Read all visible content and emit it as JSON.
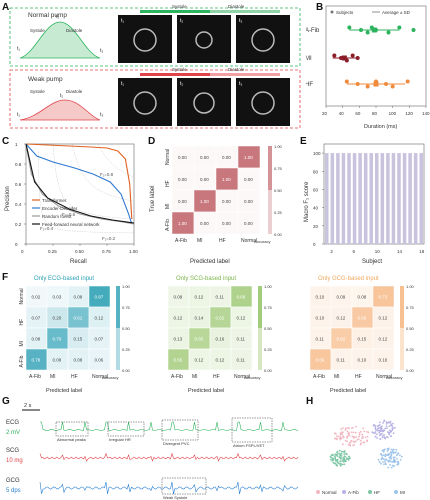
{
  "panels": {
    "A": {
      "letter": "A",
      "normal": {
        "title": "Normal pump",
        "systole": "Systole",
        "diastole": "Diastole",
        "t1": "t₁",
        "t2": "t₂",
        "t3": "t₃",
        "frames": [
          "t₁",
          "t₂",
          "t₃"
        ],
        "arrow_systole": "Systole",
        "arrow_diastole": "Diastole",
        "color": "#2db35d"
      },
      "weak": {
        "title": "Weak pump",
        "systole": "Systole",
        "diastole": "Diastole",
        "t1": "t₁",
        "t2": "t₂",
        "t3": "t₃",
        "frames": [
          "t₁",
          "t₂",
          "t₃"
        ],
        "arrow_systole": "Systole",
        "arrow_diastole": "Diastole",
        "color": "#e0444a"
      }
    },
    "B": {
      "letter": "B",
      "legend_subjects": "Subjects",
      "legend_avg": "Average ± SD",
      "xlabel": "Duration (ms)",
      "xticks": [
        "20",
        "40",
        "60",
        "80",
        "100",
        "120",
        "140"
      ],
      "categories": [
        "A-Fib",
        "MI",
        "HF"
      ]
    },
    "C": {
      "letter": "C",
      "xlabel": "Recall",
      "ylabel": "Precision",
      "xticks": [
        "0",
        "0.25",
        "0.50",
        "0.75",
        "1.00"
      ],
      "yticks": [
        "0",
        "0.2",
        "0.4",
        "0.6",
        "0.8",
        "1"
      ],
      "legend": [
        "Transformer",
        "Encoder-Decoder",
        "Random forest",
        "Feed-forward neural network"
      ],
      "annotations": [
        "F₁=0.8",
        "F₁=0.6",
        "F₁=0.4",
        "F₁=0.2"
      ]
    },
    "D": {
      "letter": "D",
      "xlabel": "Predicted label",
      "ylabel": "True label",
      "labels": [
        "A-Fib",
        "MI",
        "HF",
        "Normal"
      ],
      "colorbar_ticks": [
        "1.00",
        "0.75",
        "0.50",
        "0.25",
        "0.00"
      ],
      "colorbar_label": "Accuracy",
      "color": "#c8787d"
    },
    "E": {
      "letter": "E",
      "xlabel": "Subject",
      "ylabel": "Macro F₁ score",
      "xticks": [
        "2",
        "6",
        "10",
        "14",
        "18"
      ],
      "yticks": [
        "0",
        "20",
        "40",
        "60",
        "80",
        "100"
      ]
    },
    "F": {
      "letter": "F",
      "titles": [
        "Only ECG-based input",
        "Only SCG-based input",
        "Only GCG-based input"
      ],
      "title_colors": [
        "#2a9fb4",
        "#7bb34a",
        "#f0a860"
      ],
      "cell_colors": [
        "#2a9fb4",
        "#8cbf5a",
        "#f5b077"
      ],
      "xlabel": "Predicted label",
      "labels": [
        "A-Fib",
        "MI",
        "HF",
        "Normal"
      ],
      "colorbar_ticks": [
        "1.00",
        "0.75",
        "0.50",
        "0.25",
        "0.00"
      ],
      "colorbar_label": "Accuracy"
    },
    "G": {
      "letter": "G",
      "scale_time": "2 s",
      "signals": [
        {
          "label": "ECG",
          "scale": "2 mV",
          "color": "#2db35d"
        },
        {
          "label": "SCG",
          "scale": "10 mg",
          "color": "#e0444a"
        },
        {
          "label": "GCG",
          "scale": "5 dps",
          "color": "#2a7fd0"
        }
      ],
      "boxes": [
        "Abnormal peaks",
        "Irregular HR",
        "Divergent PVC",
        "Weak Systole",
        "Atrium FSPL/VET"
      ]
    },
    "H": {
      "letter": "H",
      "legend": [
        {
          "label": "Normal",
          "color": "#f2b7c2"
        },
        {
          "label": "A-Fib",
          "color": "#b7b2e4"
        },
        {
          "label": "HF",
          "color": "#7fc7a6"
        },
        {
          "label": "MI",
          "color": "#9ec4ea"
        }
      ]
    }
  },
  "chart_data": [
    {
      "type": "scatter",
      "panel": "B",
      "xlabel": "Duration (ms)",
      "xlim": [
        20,
        140
      ],
      "categories": [
        "A-Fib",
        "MI",
        "HF"
      ],
      "series": [
        {
          "name": "A-Fib",
          "color": "#2db35d",
          "x": [
            48,
            62,
            70,
            75,
            80,
            95,
            108,
            125
          ],
          "mean": 78,
          "sd": 30
        },
        {
          "name": "MI",
          "color": "#8b1c2a",
          "x": [
            30,
            38,
            45,
            52,
            58
          ],
          "mean": 42,
          "sd": 14
        },
        {
          "name": "HF",
          "color": "#f08a3c",
          "x": [
            45,
            58,
            70,
            80,
            92,
            100,
            118
          ],
          "mean": 80,
          "sd": 35
        }
      ]
    },
    {
      "type": "line",
      "panel": "C",
      "xlabel": "Recall",
      "ylabel": "Precision",
      "xlim": [
        0,
        1
      ],
      "ylim": [
        0,
        1
      ],
      "series": [
        {
          "name": "Transformer",
          "color": "#e0601f",
          "points": [
            [
              0,
              1
            ],
            [
              0.2,
              0.99
            ],
            [
              0.4,
              0.98
            ],
            [
              0.6,
              0.97
            ],
            [
              0.75,
              0.96
            ],
            [
              0.85,
              0.93
            ],
            [
              0.92,
              0.85
            ],
            [
              0.96,
              0.6
            ],
            [
              0.98,
              0.25
            ]
          ]
        },
        {
          "name": "Encoder-Decoder",
          "color": "#2f7ad1",
          "points": [
            [
              0,
              1
            ],
            [
              0.1,
              0.88
            ],
            [
              0.25,
              0.82
            ],
            [
              0.45,
              0.76
            ],
            [
              0.62,
              0.7
            ],
            [
              0.78,
              0.62
            ],
            [
              0.88,
              0.5
            ],
            [
              0.95,
              0.3
            ],
            [
              0.98,
              0.2
            ]
          ]
        },
        {
          "name": "Random forest",
          "color": "#9a9a9a",
          "points": [
            [
              0,
              1
            ],
            [
              0.05,
              0.7
            ],
            [
              0.15,
              0.5
            ],
            [
              0.3,
              0.38
            ],
            [
              0.5,
              0.3
            ],
            [
              0.7,
              0.25
            ],
            [
              0.9,
              0.22
            ],
            [
              1,
              0.2
            ]
          ]
        },
        {
          "name": "Feed-forward neural network",
          "color": "#111111",
          "points": [
            [
              0,
              1
            ],
            [
              0.08,
              0.62
            ],
            [
              0.2,
              0.46
            ],
            [
              0.4,
              0.35
            ],
            [
              0.6,
              0.28
            ],
            [
              0.8,
              0.24
            ],
            [
              1,
              0.21
            ]
          ]
        }
      ]
    },
    {
      "type": "heatmap",
      "panel": "D",
      "xlabel": "Predicted label",
      "ylabel": "True label",
      "x": [
        "A-Fib",
        "MI",
        "HF",
        "Normal"
      ],
      "y": [
        "Normal",
        "HF",
        "MI",
        "A-Fib"
      ],
      "values": [
        [
          0.0,
          0.0,
          0.0,
          1.0
        ],
        [
          0.0,
          0.0,
          1.0,
          0.0
        ],
        [
          0.0,
          1.0,
          0.0,
          0.0
        ],
        [
          1.0,
          0.0,
          0.0,
          0.0
        ]
      ],
      "labels": [
        [
          "0.00",
          "0.00",
          "0.00",
          "1.00"
        ],
        [
          "0.00",
          "0.00",
          "1.00",
          "0.00"
        ],
        [
          "0.00",
          "1.00",
          "0.00",
          "0.00"
        ],
        [
          "1.00",
          "0.00",
          "0.00",
          "0.00"
        ]
      ]
    },
    {
      "type": "bar",
      "panel": "E",
      "xlabel": "Subject",
      "ylabel": "Macro F₁ score",
      "ylim": [
        0,
        110
      ],
      "categories": [
        "1",
        "2",
        "3",
        "4",
        "5",
        "6",
        "7",
        "8",
        "9",
        "10",
        "11",
        "12",
        "13",
        "14",
        "15",
        "16",
        "17",
        "18"
      ],
      "values": [
        100,
        100,
        100,
        100,
        100,
        100,
        100,
        100,
        100,
        100,
        100,
        100,
        100,
        100,
        100,
        100,
        100,
        100
      ]
    },
    {
      "type": "heatmap",
      "panel": "F",
      "title": "Only ECG-based input",
      "x": [
        "A-Fib",
        "MI",
        "HF",
        "Normal"
      ],
      "y": [
        "Normal",
        "HF",
        "MI",
        "A-Fib"
      ],
      "values": [
        [
          0.02,
          0.03,
          0.08,
          0.87
        ],
        [
          0.07,
          0.2,
          0.61,
          0.12
        ],
        [
          0.08,
          0.7,
          0.15,
          0.07
        ],
        [
          0.78,
          0.08,
          0.08,
          0.06
        ]
      ],
      "labels": [
        [
          "0.02",
          "0.03",
          "0.08",
          "0.87"
        ],
        [
          "0.07",
          "0.20",
          "0.61",
          "0.12"
        ],
        [
          "0.08",
          "0.70",
          "0.15",
          "0.07"
        ],
        [
          "0.78",
          "0.08",
          "0.08",
          "0.06"
        ]
      ]
    },
    {
      "type": "heatmap",
      "panel": "F",
      "title": "Only SCG-based input",
      "x": [
        "A-Fib",
        "MI",
        "HF",
        "Normal"
      ],
      "y": [
        "Normal",
        "HF",
        "MI",
        "A-Fib"
      ],
      "values": [
        [
          0.09,
          0.12,
          0.11,
          0.68
        ],
        [
          0.12,
          0.14,
          0.62,
          0.12
        ],
        [
          0.13,
          0.6,
          0.16,
          0.11
        ],
        [
          0.65,
          0.12,
          0.12,
          0.11
        ]
      ],
      "labels": [
        [
          "0.09",
          "0.12",
          "0.11",
          "0.68"
        ],
        [
          "0.12",
          "0.14",
          "0.62",
          "0.12"
        ],
        [
          "0.13",
          "0.60",
          "0.16",
          "0.11"
        ],
        [
          "0.65",
          "0.12",
          "0.12",
          "0.11"
        ]
      ]
    },
    {
      "type": "heatmap",
      "panel": "F",
      "title": "Only GCG-based input",
      "x": [
        "A-Fib",
        "MI",
        "HF",
        "Normal"
      ],
      "y": [
        "Normal",
        "HF",
        "MI",
        "A-Fib"
      ],
      "values": [
        [
          0.1,
          0.09,
          0.08,
          0.73
        ],
        [
          0.1,
          0.12,
          0.66,
          0.12
        ],
        [
          0.11,
          0.62,
          0.15,
          0.12
        ],
        [
          0.69,
          0.11,
          0.1,
          0.1
        ]
      ],
      "labels": [
        [
          "0.10",
          "0.09",
          "0.08",
          "0.73"
        ],
        [
          "0.10",
          "0.12",
          "0.66",
          "0.12"
        ],
        [
          "0.11",
          "0.62",
          "0.15",
          "0.12"
        ],
        [
          "0.69",
          "0.11",
          "0.10",
          "0.10"
        ]
      ]
    }
  ]
}
